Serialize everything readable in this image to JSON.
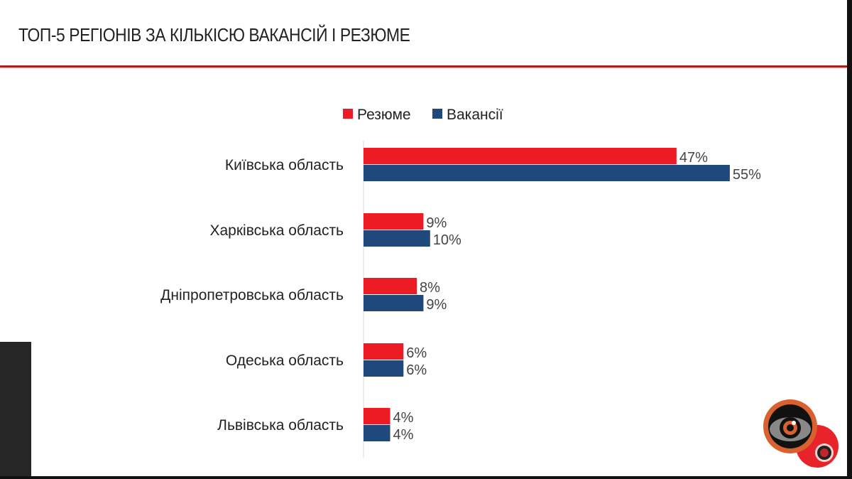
{
  "title": "ТОП-5 РЕГІОНІВ ЗА КІЛЬКІСЮ ВАКАНСІЙ І РЕЗЮМЕ",
  "chart_data": {
    "type": "bar",
    "orientation": "horizontal",
    "title": "ТОП-5 РЕГІОНІВ ЗА КІЛЬКІСЮ ВАКАНСІЙ І РЕЗЮМЕ",
    "categories": [
      "Київська область",
      "Харківська область",
      "Дніпропетровська область",
      "Одеська область",
      "Львівська область"
    ],
    "series": [
      {
        "name": "Резюме",
        "color": "#ed1c24",
        "values": [
          47,
          9,
          8,
          6,
          4
        ],
        "labels": [
          "47%",
          "9%",
          "8%",
          "6%",
          "4%"
        ]
      },
      {
        "name": "Вакансії",
        "color": "#1f497d",
        "values": [
          55,
          10,
          9,
          6,
          4
        ],
        "labels": [
          "55%",
          "10%",
          "9%",
          "6%",
          "4%"
        ]
      }
    ],
    "unit": "%",
    "legend": "top",
    "grid": false,
    "xlim": [
      0,
      60
    ]
  },
  "logo": {
    "icon": "eye-logo-icon"
  }
}
